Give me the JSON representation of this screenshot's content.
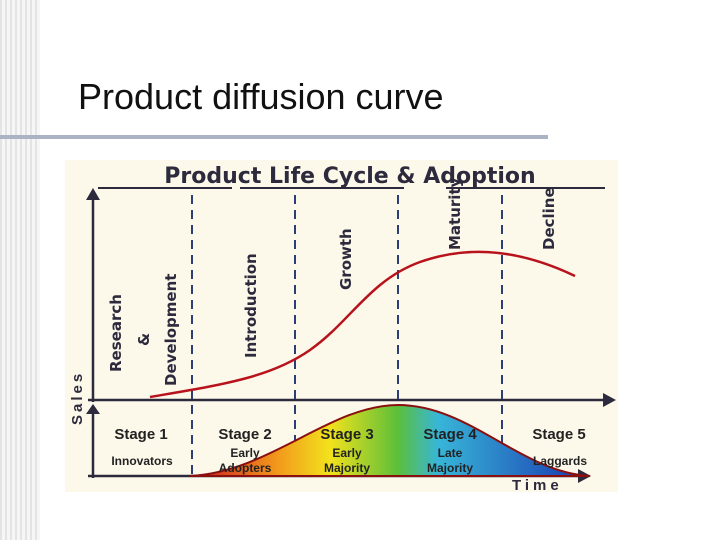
{
  "header": {
    "title": "Product diffusion curve"
  },
  "diagram": {
    "title": "Product Life Cycle & Adoption",
    "y_axis_label": "Sales",
    "x_axis_label": "Time",
    "phases": [
      [
        "Research",
        "&",
        "Development"
      ],
      [
        "Introduction"
      ],
      [
        "Growth"
      ],
      [
        "Maturity"
      ],
      [
        "Decline"
      ]
    ],
    "stages": [
      {
        "label": "Stage 1",
        "group": [
          "Innovators"
        ]
      },
      {
        "label": "Stage 2",
        "group": [
          "Early",
          "Adopters"
        ]
      },
      {
        "label": "Stage 3",
        "group": [
          "Early",
          "Majority"
        ]
      },
      {
        "label": "Stage 4",
        "group": [
          "Late",
          "Majority"
        ]
      },
      {
        "label": "Stage 5",
        "group": [
          "Laggards"
        ]
      }
    ]
  }
}
